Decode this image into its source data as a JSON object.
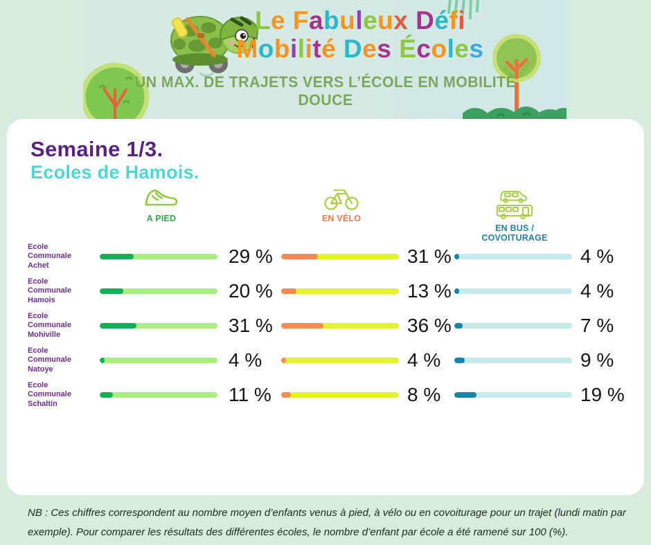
{
  "header": {
    "title_line1": [
      {
        "t": "L",
        "c": "#8dc63f"
      },
      {
        "t": "e",
        "c": "#f7941d"
      },
      {
        "t": " "
      },
      {
        "t": "F",
        "c": "#f7941d"
      },
      {
        "t": "a",
        "c": "#a5338d"
      },
      {
        "t": "b",
        "c": "#2bb7c9"
      },
      {
        "t": "u",
        "c": "#f7941d"
      },
      {
        "t": "l",
        "c": "#8e44ad"
      },
      {
        "t": "e",
        "c": "#8dc63f"
      },
      {
        "t": "u",
        "c": "#f7941d"
      },
      {
        "t": "x",
        "c": "#e8563f"
      },
      {
        "t": " "
      },
      {
        "t": "D",
        "c": "#a5338d"
      },
      {
        "t": "é",
        "c": "#2bb7c9"
      },
      {
        "t": "f",
        "c": "#f7941d"
      },
      {
        "t": "i",
        "c": "#e8563f"
      }
    ],
    "title_line2": [
      {
        "t": "M",
        "c": "#f7941d"
      },
      {
        "t": "o",
        "c": "#2bb7c9"
      },
      {
        "t": "b",
        "c": "#f7941d"
      },
      {
        "t": "i",
        "c": "#8e44ad"
      },
      {
        "t": "l",
        "c": "#8dc63f"
      },
      {
        "t": "i",
        "c": "#f7941d"
      },
      {
        "t": "t",
        "c": "#a5338d"
      },
      {
        "t": "é",
        "c": "#f7941d"
      },
      {
        "t": " "
      },
      {
        "t": "D",
        "c": "#2bb7c9"
      },
      {
        "t": "e",
        "c": "#f7941d"
      },
      {
        "t": "s",
        "c": "#a5338d"
      },
      {
        "t": " "
      },
      {
        "t": "É",
        "c": "#8dc63f"
      },
      {
        "t": "c",
        "c": "#a5338d"
      },
      {
        "t": "o",
        "c": "#f7941d"
      },
      {
        "t": "l",
        "c": "#2bb7c9"
      },
      {
        "t": "e",
        "c": "#8dc63f"
      },
      {
        "t": "s",
        "c": "#3aa8d9"
      }
    ],
    "subtitle": "UN MAX. DE TRAJETS VERS L’ÉCOLE EN MOBILITÉ DOUCE"
  },
  "card": {
    "week_title": "Semaine 1/3.",
    "subtitle": "Ecoles de Hamois."
  },
  "columns": [
    {
      "id": "pied",
      "label": "A PIED",
      "icon": "shoe-icon",
      "label_color": "#2bae4a",
      "fill": "#13b157",
      "track": "#a9ef7f"
    },
    {
      "id": "velo",
      "label": "EN VÉLO",
      "icon": "bicycle-icon",
      "label_color": "#f1764b",
      "fill": "#f78b52",
      "track": "#e3f42a"
    },
    {
      "id": "bus",
      "label": "EN BUS / COVOITURAGE",
      "icon": "bus-icon",
      "label_color": "#1d86a5",
      "fill": "#1787a9",
      "track": "#c5e9ed"
    }
  ],
  "chart_data": {
    "type": "bar",
    "categories": [
      "Ecole Communale Achet",
      "Ecole Communale Hamois",
      "Ecole Communale Mohiville",
      "Ecole Communale Natoye",
      "Ecole Communale Schaltin"
    ],
    "series": [
      {
        "name": "A PIED",
        "values": [
          29,
          20,
          31,
          4,
          11
        ]
      },
      {
        "name": "EN VÉLO",
        "values": [
          31,
          13,
          36,
          4,
          8
        ]
      },
      {
        "name": "EN BUS / COVOITURAGE",
        "values": [
          4,
          4,
          7,
          9,
          19
        ]
      }
    ],
    "unit": "%",
    "xlim": [
      0,
      100
    ],
    "title": "Semaine 1/3. Ecoles de Hamois.",
    "legend_position": "top",
    "grid": false
  },
  "note": "NB : Ces chiffres correspondent au nombre moyen d’enfants venus à pied, à vélo ou en covoiturage pour un trajet (lundi matin par exemple). Pour comparer les résultats des différentes écoles, le nombre d’enfant par école a été ramené sur 100 (%)."
}
